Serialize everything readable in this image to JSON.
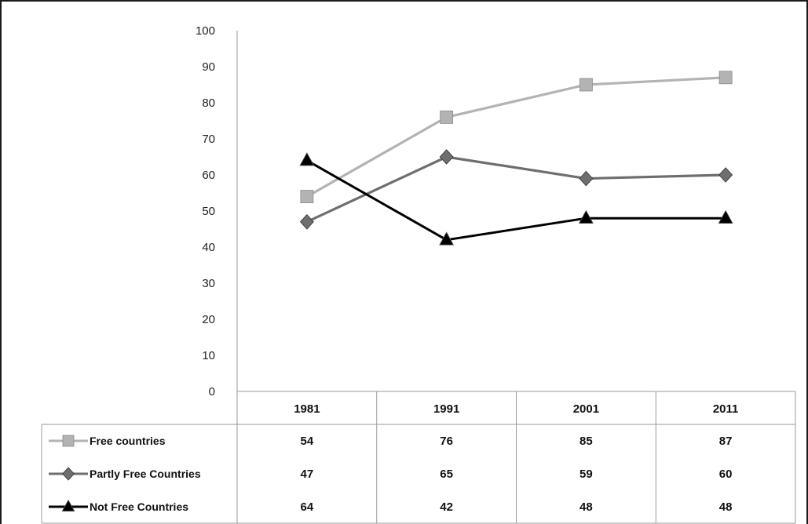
{
  "chart_data": {
    "type": "line",
    "title": "",
    "xlabel": "",
    "ylabel": "",
    "ylim": [
      0,
      100
    ],
    "yticks": [
      0,
      10,
      20,
      30,
      40,
      50,
      60,
      70,
      80,
      90,
      100
    ],
    "categories": [
      "1981",
      "1991",
      "2001",
      "2011"
    ],
    "grid": false,
    "legend": "data-table",
    "series": [
      {
        "name": "Free countries",
        "values": [
          54,
          76,
          85,
          87
        ],
        "color": "#b3b3b3",
        "marker": "square"
      },
      {
        "name": "Partly Free Countries",
        "values": [
          47,
          65,
          59,
          60
        ],
        "color": "#6e6e6e",
        "marker": "diamond"
      },
      {
        "name": "Not Free Countries",
        "values": [
          64,
          42,
          48,
          48
        ],
        "color": "#000000",
        "marker": "triangle"
      }
    ]
  }
}
